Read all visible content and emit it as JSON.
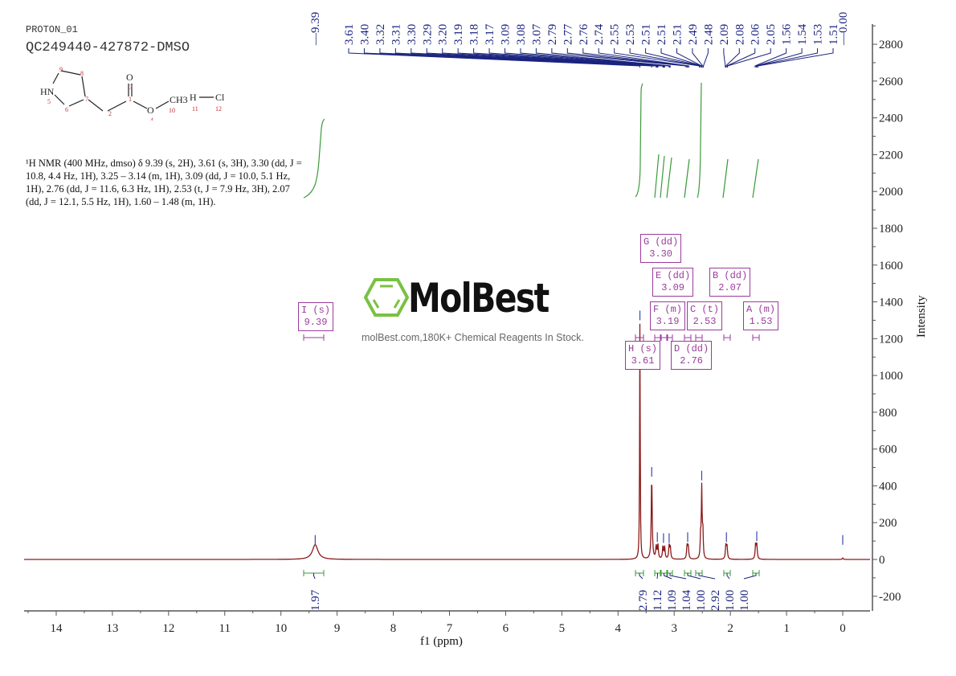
{
  "header": {
    "experiment": "PROTON_01",
    "sample": "QC249440-427872-DMSO"
  },
  "structure": {
    "atoms": [
      "9",
      "8",
      "HN",
      "5",
      "6",
      "7",
      "2",
      "1",
      "3",
      "O",
      "O",
      "4",
      "CH3",
      "10",
      "H",
      "11",
      "Cl",
      "12"
    ]
  },
  "nmr_description": "¹H NMR (400 MHz, dmso) δ 9.39 (s, 2H), 3.61 (s, 3H), 3.30 (dd, J = 10.8, 4.4 Hz, 1H), 3.25 – 3.14 (m, 1H), 3.09 (dd, J = 10.0, 5.1 Hz, 1H), 2.76 (dd, J = 11.6, 6.3 Hz, 1H), 2.53 (t, J = 7.9 Hz, 3H), 2.07 (dd, J = 12.1, 5.5 Hz, 1H), 1.60 – 1.48 (m, 1H).",
  "watermark": {
    "brand": "MolBest",
    "tagline": "molBest.com,180K+ Chemical Reagents In Stock."
  },
  "colors": {
    "spectrum": "#8b1a1a",
    "peak_labels": "#1a237e",
    "integrals": "#2e8b2e",
    "multiplet_boxes": "#9b3b9b"
  },
  "chart_data": {
    "type": "line",
    "title": "PROTON_01 QC249440-427872-DMSO",
    "xlabel": "f1 (ppm)",
    "ylabel": "Intensity",
    "xlim": [
      14.5,
      -0.5
    ],
    "ylim": [
      -250,
      2900
    ],
    "x_ticks": [
      "14",
      "13",
      "12",
      "11",
      "10",
      "9",
      "8",
      "7",
      "6",
      "5",
      "4",
      "3",
      "2",
      "1",
      "0"
    ],
    "y_ticks": [
      "2800",
      "2600",
      "2400",
      "2200",
      "2000",
      "1800",
      "1600",
      "1400",
      "1200",
      "1000",
      "800",
      "600",
      "400",
      "200",
      "0",
      "-200"
    ],
    "peak_labels": [
      "9.39",
      "3.61",
      "3.40",
      "3.32",
      "3.31",
      "3.30",
      "3.29",
      "3.20",
      "3.19",
      "3.18",
      "3.17",
      "3.09",
      "3.08",
      "3.07",
      "2.79",
      "2.77",
      "2.76",
      "2.74",
      "2.55",
      "2.53",
      "2.51",
      "2.51",
      "2.51",
      "2.49",
      "2.48",
      "2.09",
      "2.08",
      "2.06",
      "2.05",
      "1.56",
      "1.54",
      "1.53",
      "1.51",
      "0.00"
    ],
    "peaks": [
      {
        "ppm": 9.39,
        "intensity": 80
      },
      {
        "ppm": 3.61,
        "intensity": 1300
      },
      {
        "ppm": 3.4,
        "intensity": 450
      },
      {
        "ppm": 3.3,
        "intensity": 95
      },
      {
        "ppm": 3.19,
        "intensity": 90
      },
      {
        "ppm": 3.09,
        "intensity": 90
      },
      {
        "ppm": 2.76,
        "intensity": 95
      },
      {
        "ppm": 2.51,
        "intensity": 430
      },
      {
        "ppm": 2.07,
        "intensity": 95
      },
      {
        "ppm": 1.53,
        "intensity": 100
      },
      {
        "ppm": 0.0,
        "intensity": 80
      }
    ],
    "multiplets": [
      {
        "label": "I (s)",
        "shift": "9.39"
      },
      {
        "label": "H (s)",
        "shift": "3.61"
      },
      {
        "label": "G (dd)",
        "shift": "3.30"
      },
      {
        "label": "F (m)",
        "shift": "3.19"
      },
      {
        "label": "E (dd)",
        "shift": "3.09"
      },
      {
        "label": "D (dd)",
        "shift": "2.76"
      },
      {
        "label": "C (t)",
        "shift": "2.53"
      },
      {
        "label": "B (dd)",
        "shift": "2.07"
      },
      {
        "label": "A (m)",
        "shift": "1.53"
      }
    ],
    "integrals": [
      "1.97",
      "2.79",
      "1.12",
      "1.09",
      "1.04",
      "1.00",
      "2.92",
      "1.00",
      "1.00"
    ]
  }
}
